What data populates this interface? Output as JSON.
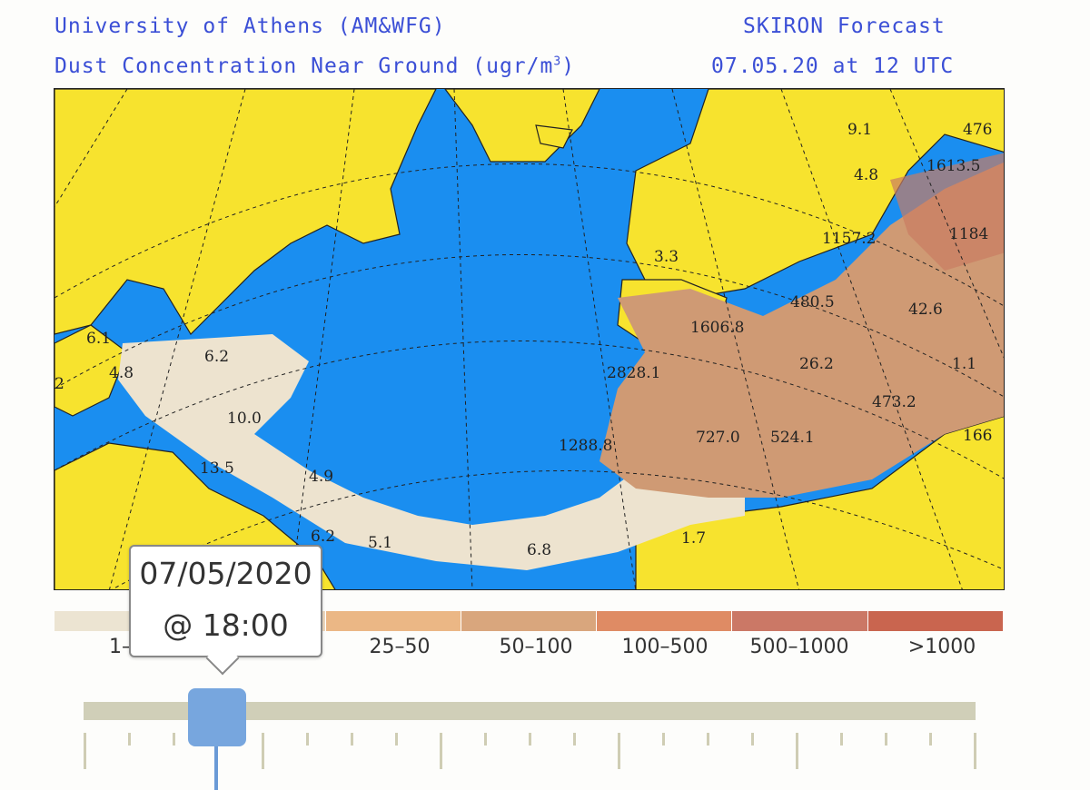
{
  "header": {
    "institution": "University of Athens (AM&WFG)",
    "model": "SKIRON Forecast",
    "variable": "Dust Concentration Near Ground (ugr/m",
    "unit_sup": "3",
    "unit_close": ")",
    "valid": "07.05.20 at 12 UTC"
  },
  "map": {
    "colors": {
      "ocean": "#1a8ef0",
      "land": "#f7e32e",
      "dust_low": "#ede3cf",
      "dust_mid": "#cf9a74",
      "dust_high": "#c97c62"
    },
    "values": [
      "9.1",
      "476",
      "1613.5",
      "4.8",
      "1157.2",
      "1184",
      "3.3",
      "480.5",
      "42.6",
      "1606.8",
      "6.1",
      "4.8",
      "2",
      "6.2",
      "2828.1",
      "26.2",
      "1.1",
      "10.0",
      "473.2",
      "1288.8",
      "727.0",
      "524.1",
      "166",
      "13.5",
      "4.9",
      "6.2",
      "5.1",
      "6.8",
      "1.7"
    ]
  },
  "legend": {
    "colors": [
      "#ece4d2",
      "#eed9bf",
      "#ebb785",
      "#d9a67d",
      "#df8b64",
      "#cb7866",
      "#c9654f"
    ],
    "labels": [
      "1–",
      "25–50",
      "50–100",
      "100–500",
      "500–1000",
      ">1000"
    ]
  },
  "slider": {
    "tooltip_date": "07/05/2020",
    "tooltip_time": "@ 18:00",
    "position_fraction": 0.12
  }
}
